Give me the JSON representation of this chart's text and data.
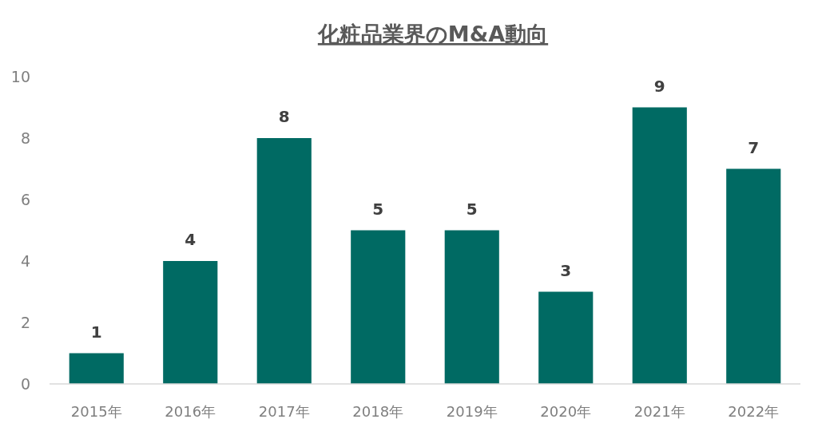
{
  "chart_data": {
    "type": "bar",
    "title": "化粧品業界のM&A動向",
    "categories": [
      "2015年",
      "2016年",
      "2017年",
      "2018年",
      "2019年",
      "2020年",
      "2021年",
      "2022年"
    ],
    "values": [
      1,
      4,
      8,
      5,
      5,
      3,
      9,
      7
    ],
    "color": "#006a63",
    "ylim": [
      0,
      10
    ],
    "yticks": [
      0,
      2,
      4,
      6,
      8,
      10
    ],
    "data_labels": true
  }
}
